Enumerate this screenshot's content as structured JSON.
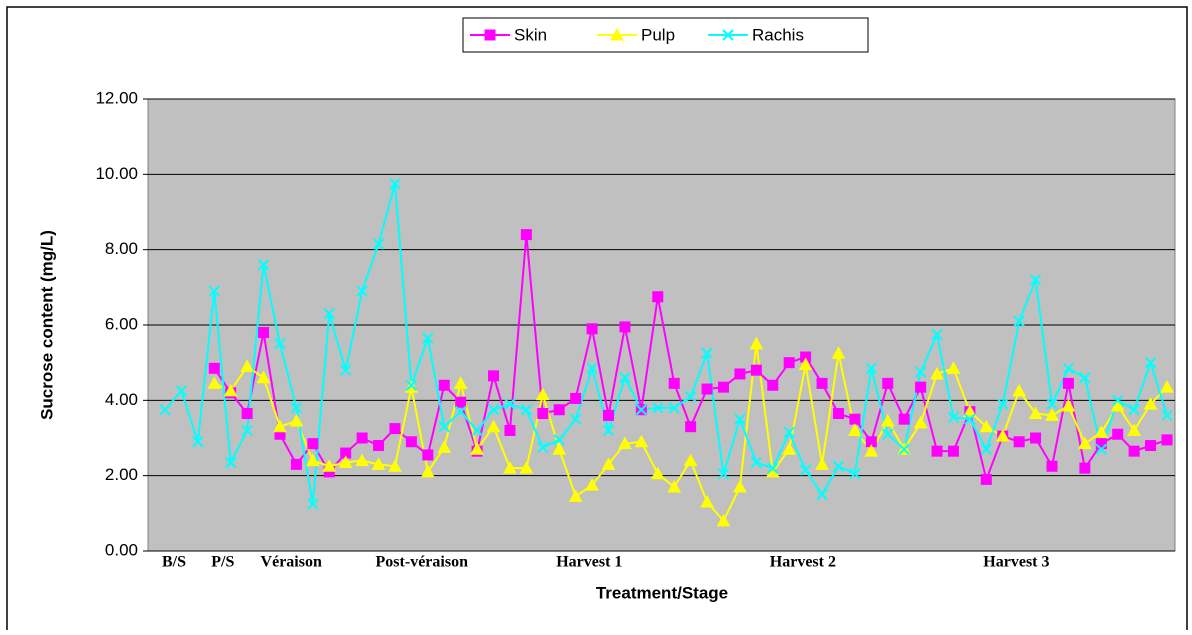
{
  "chart_data": {
    "type": "line",
    "x_label": "Treatment/Stage",
    "y_label": "Sucrose content (mg/L)",
    "categories": [
      "B/S",
      null,
      null,
      "P/S",
      null,
      null,
      "Véraison",
      null,
      null,
      null,
      null,
      null,
      null,
      "Post-véraison",
      null,
      null,
      null,
      null,
      null,
      null,
      null,
      null,
      null,
      null,
      "Harvest 1",
      null,
      null,
      null,
      null,
      null,
      null,
      null,
      null,
      null,
      null,
      null,
      null,
      "Harvest 2",
      null,
      null,
      null,
      null,
      null,
      null,
      null,
      null,
      null,
      null,
      null,
      null,
      "Harvest 3",
      null,
      null,
      null,
      null,
      null,
      null,
      null,
      null,
      null,
      null,
      null
    ],
    "series": [
      {
        "name": "Skin",
        "color": "#ff00ff",
        "marker": "square",
        "values": [
          null,
          null,
          null,
          4.85,
          4.2,
          3.65,
          5.8,
          3.1,
          2.3,
          2.85,
          2.1,
          2.6,
          3.0,
          2.8,
          3.25,
          2.9,
          2.55,
          4.4,
          3.95,
          2.65,
          4.65,
          3.2,
          8.4,
          3.65,
          3.75,
          4.05,
          5.9,
          3.6,
          5.95,
          3.75,
          6.75,
          4.45,
          3.3,
          4.3,
          4.35,
          4.7,
          4.8,
          4.4,
          5.0,
          5.15,
          4.45,
          3.65,
          3.5,
          2.9,
          4.45,
          3.5,
          4.35,
          2.65,
          2.65,
          3.7,
          1.9,
          3.05,
          2.9,
          3.0,
          2.25,
          4.45,
          2.2,
          2.85,
          3.1,
          2.65,
          2.8,
          2.95
        ]
      },
      {
        "name": "Pulp",
        "color": "#ffff00",
        "marker": "triangle",
        "values": [
          null,
          null,
          null,
          4.45,
          4.25,
          4.9,
          4.6,
          3.3,
          3.45,
          2.4,
          2.25,
          2.35,
          2.4,
          2.3,
          2.25,
          4.35,
          2.1,
          2.75,
          4.45,
          2.7,
          3.3,
          2.2,
          2.2,
          4.15,
          2.7,
          1.45,
          1.75,
          2.3,
          2.85,
          2.9,
          2.05,
          1.7,
          2.4,
          1.3,
          0.8,
          1.7,
          5.5,
          2.1,
          2.7,
          4.95,
          2.3,
          5.25,
          3.2,
          2.65,
          3.45,
          2.7,
          3.4,
          4.7,
          4.85,
          3.7,
          3.3,
          3.05,
          4.25,
          3.65,
          3.6,
          3.85,
          2.85,
          3.15,
          3.85,
          3.2,
          3.9,
          4.35
        ]
      },
      {
        "name": "Rachis",
        "color": "#00ffff",
        "marker": "x",
        "values": [
          3.75,
          4.25,
          2.9,
          6.9,
          2.35,
          3.2,
          7.6,
          5.5,
          3.8,
          1.25,
          6.3,
          4.8,
          6.9,
          8.15,
          9.75,
          4.4,
          5.65,
          3.3,
          3.7,
          3.2,
          3.75,
          3.9,
          3.75,
          2.75,
          2.95,
          3.5,
          4.85,
          3.2,
          4.6,
          3.75,
          3.8,
          3.8,
          4.1,
          5.25,
          2.05,
          3.5,
          2.35,
          2.2,
          3.15,
          2.15,
          1.5,
          2.25,
          2.05,
          4.85,
          3.1,
          2.7,
          4.75,
          5.75,
          3.55,
          3.5,
          2.7,
          3.9,
          6.1,
          7.2,
          3.9,
          4.85,
          4.6,
          2.7,
          4.0,
          3.75,
          5.0,
          3.6
        ]
      }
    ],
    "ylim": [
      0,
      12
    ],
    "yticks": [
      {
        "value": 0,
        "label": "0.00"
      },
      {
        "value": 2,
        "label": "2.00"
      },
      {
        "value": 4,
        "label": "4.00"
      },
      {
        "value": 6,
        "label": "6.00"
      },
      {
        "value": 8,
        "label": "8.00"
      },
      {
        "value": 10,
        "label": "10.00"
      },
      {
        "value": 12,
        "label": "12.00"
      }
    ],
    "grid": true,
    "legend": "top",
    "plot_background": "#c0c0c0"
  }
}
